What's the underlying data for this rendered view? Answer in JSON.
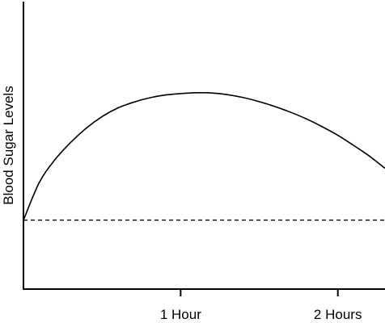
{
  "chart_data": {
    "type": "line",
    "title": "",
    "xlabel": "",
    "ylabel": "Blood Sugar Levels",
    "x_tick_labels": [
      "1 Hour",
      "2 Hours"
    ],
    "x_ticks": [
      1,
      2
    ],
    "xlim": [
      0,
      2.3
    ],
    "ylim": [
      0,
      100
    ],
    "grid": false,
    "legend": "none",
    "series": [
      {
        "style": "solid",
        "x": [
          0,
          0.1,
          0.2,
          0.3,
          0.4,
          0.5,
          0.6,
          0.7,
          0.8,
          0.9,
          1.0,
          1.1,
          1.2,
          1.3,
          1.4,
          1.5,
          1.6,
          1.7,
          1.8,
          1.9,
          2.0,
          2.1,
          2.2,
          2.3
        ],
        "y": [
          24,
          37,
          45,
          51,
          56,
          60,
          63,
          65,
          66.5,
          67.5,
          68,
          68.3,
          68.2,
          67.6,
          66.6,
          65.2,
          63.5,
          61.5,
          59.2,
          56.5,
          53.5,
          50,
          46.3,
          42
        ]
      },
      {
        "style": "dashed",
        "x": [
          0,
          2.3
        ],
        "y": [
          24,
          24
        ]
      }
    ]
  }
}
